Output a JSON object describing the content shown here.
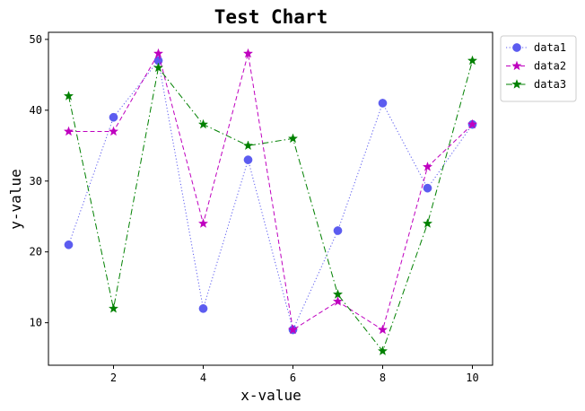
{
  "chart_data": {
    "type": "line",
    "title": "Test Chart",
    "xlabel": "x-value",
    "ylabel": "y-value",
    "x": [
      1,
      2,
      3,
      4,
      5,
      6,
      7,
      8,
      9,
      10
    ],
    "xlim": [
      0.55,
      10.45
    ],
    "ylim": [
      4,
      51
    ],
    "xticks": [
      2,
      4,
      6,
      8,
      10
    ],
    "yticks": [
      10,
      20,
      30,
      40,
      50
    ],
    "grid": false,
    "legend_position": "outside-top-right",
    "series": [
      {
        "name": "data1",
        "values": [
          21,
          39,
          47,
          12,
          33,
          9,
          23,
          41,
          29,
          38
        ],
        "color": "#5c5cf0",
        "line_style": "dotted",
        "marker": "circle"
      },
      {
        "name": "data2",
        "values": [
          37,
          37,
          48,
          24,
          48,
          9,
          13,
          9,
          32,
          38
        ],
        "color": "#bf00bf",
        "line_style": "dashed",
        "marker": "star"
      },
      {
        "name": "data3",
        "values": [
          42,
          12,
          46,
          38,
          35,
          36,
          14,
          6,
          24,
          47
        ],
        "color": "#008000",
        "line_style": "dashdot",
        "marker": "star"
      }
    ]
  }
}
